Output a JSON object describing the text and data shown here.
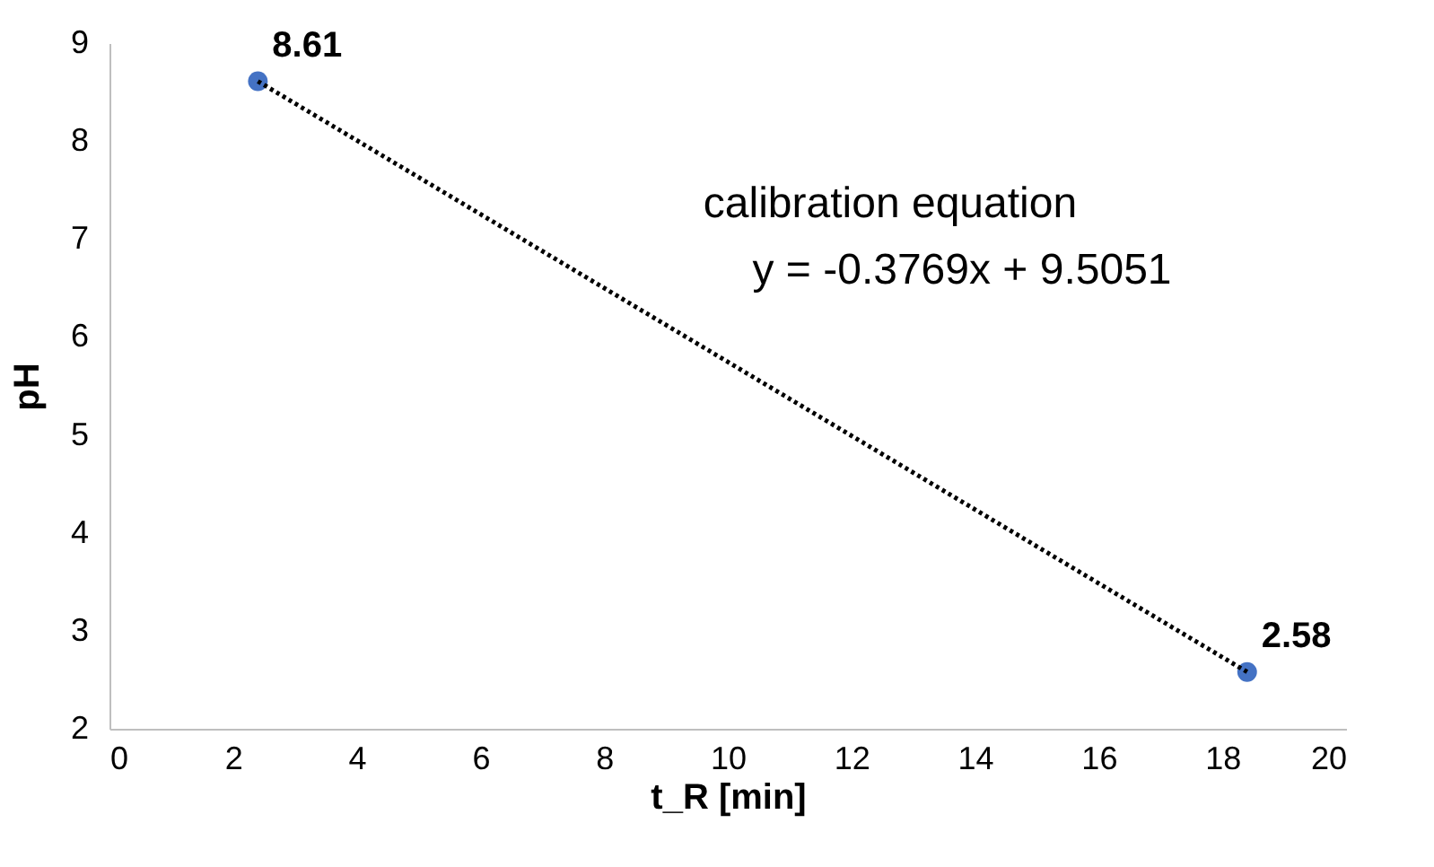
{
  "chart_data": {
    "type": "scatter",
    "x": [
      2.4,
      18.4
    ],
    "xlabel": "t_R [min]",
    "ylabel": "pH",
    "xlim": [
      0,
      20
    ],
    "xticks": [
      0,
      2,
      4,
      6,
      8,
      10,
      12,
      14,
      16,
      18,
      20
    ],
    "ylim": [
      2,
      9
    ],
    "yticks": [
      2,
      3,
      4,
      5,
      6,
      7,
      8,
      9
    ],
    "grid": false,
    "annotations": [
      "calibration equation",
      "y = -0.3769x + 9.5051"
    ],
    "series": [
      {
        "color": "#4472c4",
        "values": [
          8.61,
          2.58
        ],
        "marker": "circle",
        "value_labels": [
          "8.61",
          "2.58"
        ]
      },
      {
        "type": "line",
        "color": "#000000",
        "values": [
          8.61,
          2.58
        ],
        "marker": "none",
        "line_style": "dotted"
      }
    ]
  }
}
